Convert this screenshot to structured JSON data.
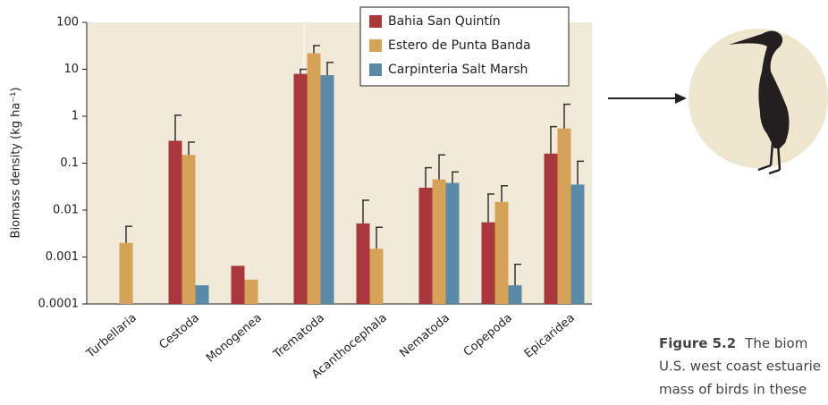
{
  "chart_data": {
    "type": "bar",
    "log_scale": true,
    "y_label": "Biomass density (kg ha⁻¹)",
    "categories": [
      "Turbellaria",
      "Cestoda",
      "Monogenea",
      "Trematoda",
      "Acanthocephala",
      "Nematoda",
      "Copepoda",
      "Epicaridea"
    ],
    "series": [
      {
        "name": "Bahia San Quintín",
        "color": "#a8383b",
        "values": [
          null,
          0.3,
          0.00065,
          8,
          0.0052,
          0.03,
          0.0055,
          0.16
        ],
        "errors": [
          null,
          0.75,
          null,
          2,
          0.011,
          0.05,
          0.0165,
          0.44
        ]
      },
      {
        "name": "Estero de Punta Banda",
        "color": "#d5a257",
        "values": [
          0.002,
          0.15,
          0.00033,
          22,
          0.0015,
          0.045,
          0.015,
          0.55
        ],
        "errors": [
          0.0025,
          0.13,
          null,
          10,
          0.0028,
          0.105,
          0.018,
          1.25
        ]
      },
      {
        "name": "Carpinteria Salt Marsh",
        "color": "#5b8aa7",
        "values": [
          null,
          0.00025,
          null,
          7.5,
          null,
          0.038,
          0.00025,
          0.035
        ],
        "errors": [
          null,
          null,
          null,
          6.5,
          null,
          0.027,
          0.00045,
          0.075
        ]
      }
    ],
    "ylim": [
      0.0001,
      100
    ],
    "yticks": [
      0.0001,
      0.001,
      0.01,
      0.1,
      1,
      10,
      100
    ],
    "legend": "top-right"
  },
  "caption": {
    "label": "Figure 5.2",
    "lines": [
      "The biom",
      "U.S. west coast estuarie",
      "mass of birds in these"
    ]
  }
}
